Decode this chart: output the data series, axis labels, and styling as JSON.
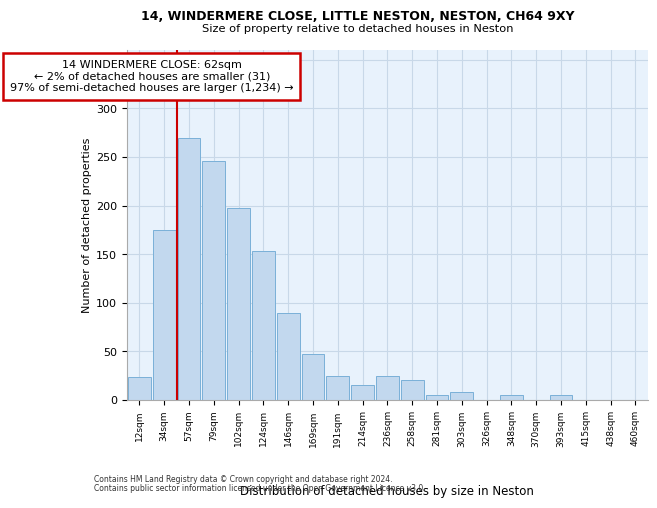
{
  "title1": "14, WINDERMERE CLOSE, LITTLE NESTON, NESTON, CH64 9XY",
  "title2": "Size of property relative to detached houses in Neston",
  "xlabel": "Distribution of detached houses by size in Neston",
  "ylabel": "Number of detached properties",
  "bin_labels": [
    "12sqm",
    "34sqm",
    "57sqm",
    "79sqm",
    "102sqm",
    "124sqm",
    "146sqm",
    "169sqm",
    "191sqm",
    "214sqm",
    "236sqm",
    "258sqm",
    "281sqm",
    "303sqm",
    "326sqm",
    "348sqm",
    "370sqm",
    "393sqm",
    "415sqm",
    "438sqm",
    "460sqm"
  ],
  "bar_values": [
    24,
    175,
    269,
    246,
    197,
    153,
    90,
    47,
    25,
    15,
    25,
    21,
    5,
    8,
    0,
    5,
    0,
    5,
    0,
    0,
    0
  ],
  "bar_color": "#c2d8ee",
  "bar_edge_color": "#7ab0d8",
  "vline_index": 1.5,
  "vline_color": "#cc0000",
  "annotation_line1": "14 WINDERMERE CLOSE: 62sqm",
  "annotation_line2": "← 2% of detached houses are smaller (31)",
  "annotation_line3": "97% of semi-detached houses are larger (1,234) →",
  "annotation_box_facecolor": "#ffffff",
  "annotation_box_edgecolor": "#cc0000",
  "grid_color": "#c8d8e8",
  "bg_color": "#e8f2fc",
  "ylim": [
    0,
    360
  ],
  "yticks": [
    0,
    50,
    100,
    150,
    200,
    250,
    300,
    350
  ],
  "footer1": "Contains HM Land Registry data © Crown copyright and database right 2024.",
  "footer2": "Contains public sector information licensed under the Open Government Licence v3.0."
}
